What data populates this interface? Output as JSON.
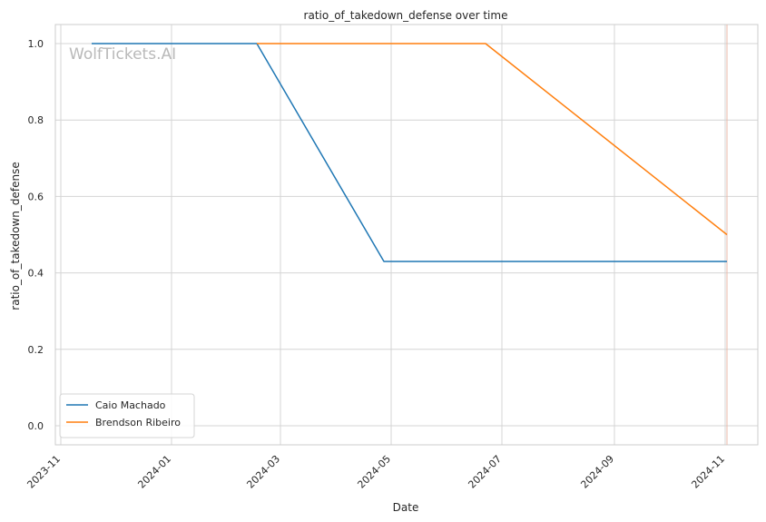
{
  "chart_data": {
    "type": "line",
    "title": "ratio_of_takedown_defense over time",
    "xlabel": "Date",
    "ylabel": "ratio_of_takedown_defense",
    "watermark": "WolfTickets.AI",
    "x_range": [
      "2023-10-29",
      "2024-11-19"
    ],
    "ylim": [
      -0.05,
      1.05
    ],
    "x_ticks": [
      "2023-11-01",
      "2024-01-01",
      "2024-03-01",
      "2024-05-01",
      "2024-07-01",
      "2024-09-01",
      "2024-11-01"
    ],
    "x_tick_labels": [
      "2023-11",
      "2024-01",
      "2024-03",
      "2024-05",
      "2024-07",
      "2024-09",
      "2024-11"
    ],
    "y_ticks": [
      0.0,
      0.2,
      0.4,
      0.6,
      0.8,
      1.0
    ],
    "y_tick_labels": [
      "0.0",
      "0.2",
      "0.4",
      "0.6",
      "0.8",
      "1.0"
    ],
    "grid": true,
    "legend_position": "lower-left",
    "series": [
      {
        "name": "Caio Machado",
        "color": "#1f77b4",
        "points": [
          {
            "x": "2023-11-18",
            "y": 1.0
          },
          {
            "x": "2024-02-17",
            "y": 1.0
          },
          {
            "x": "2024-04-27",
            "y": 0.43
          },
          {
            "x": "2024-11-02",
            "y": 0.43
          }
        ]
      },
      {
        "name": "Brendson Ribeiro",
        "color": "#ff7f0e",
        "points": [
          {
            "x": "2024-02-17",
            "y": 1.0
          },
          {
            "x": "2024-06-22",
            "y": 1.0
          },
          {
            "x": "2024-11-02",
            "y": 0.5
          }
        ]
      }
    ],
    "vline": {
      "x": "2024-11-02",
      "color": "#e8b9a8"
    }
  }
}
